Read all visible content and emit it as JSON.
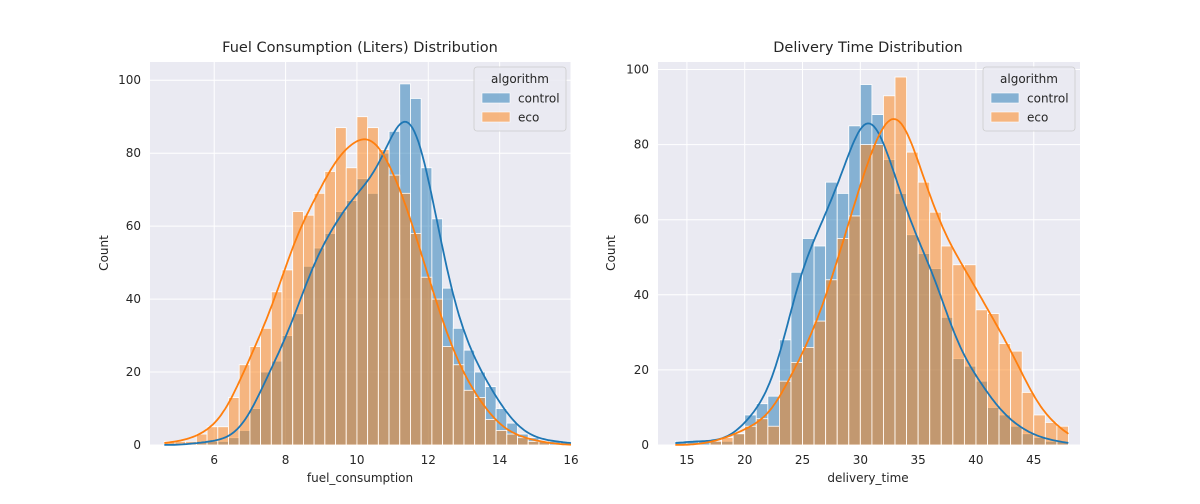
{
  "chart_data": [
    {
      "type": "histogram",
      "title": "Fuel Consumption (Liters) Distribution",
      "xlabel": "fuel_consumption",
      "ylabel": "Count",
      "xlim": [
        4.2,
        16.0
      ],
      "ylim": [
        0,
        105
      ],
      "xticks": [
        6,
        8,
        10,
        12,
        14,
        16
      ],
      "yticks": [
        0,
        20,
        40,
        60,
        80,
        100
      ],
      "grid": true,
      "kde": true,
      "bin_start": 4.6,
      "bin_width": 0.3,
      "legend": {
        "title": "algorithm",
        "location": "upper right"
      },
      "series": [
        {
          "name": "control",
          "color": "#1f77b4",
          "counts": [
            0,
            0,
            0,
            1,
            1,
            1,
            2,
            4,
            10,
            20,
            23,
            30,
            36,
            49,
            54,
            58,
            64,
            67,
            73,
            69,
            80,
            86,
            99,
            95,
            76,
            62,
            43,
            32,
            26,
            20,
            16,
            10,
            6,
            3,
            2,
            1,
            1,
            1
          ]
        },
        {
          "name": "eco",
          "color": "#ff7f0e",
          "counts": [
            1,
            1,
            1,
            3,
            5,
            5,
            13,
            22,
            27,
            32,
            42,
            48,
            64,
            63,
            69,
            75,
            87,
            76,
            90,
            87,
            81,
            74,
            69,
            58,
            46,
            40,
            27,
            22,
            15,
            13,
            7,
            4,
            3,
            2,
            1,
            1,
            0,
            0
          ]
        }
      ]
    },
    {
      "type": "histogram",
      "title": "Delivery Time Distribution",
      "xlabel": "delivery_time",
      "ylabel": "Count",
      "xlim": [
        12.5,
        49.0
      ],
      "ylim": [
        0,
        102
      ],
      "xticks": [
        15,
        20,
        25,
        30,
        35,
        40,
        45
      ],
      "yticks": [
        0,
        20,
        40,
        60,
        80,
        100
      ],
      "grid": true,
      "kde": true,
      "bin_start": 14.0,
      "bin_width": 1.0,
      "legend": {
        "title": "algorithm",
        "location": "upper right"
      },
      "series": [
        {
          "name": "control",
          "color": "#1f77b4",
          "counts": [
            1,
            1,
            1,
            1,
            1,
            3,
            8,
            11,
            13,
            28,
            46,
            55,
            53,
            70,
            67,
            85,
            96,
            88,
            76,
            67,
            56,
            51,
            47,
            34,
            23,
            21,
            17,
            10,
            8,
            5,
            3,
            2,
            1,
            1
          ]
        },
        {
          "name": "eco",
          "color": "#ff7f0e",
          "counts": [
            0,
            0,
            0,
            1,
            2,
            3,
            5,
            7,
            5,
            17,
            22,
            26,
            33,
            44,
            55,
            61,
            80,
            80,
            93,
            98,
            78,
            70,
            62,
            53,
            48,
            48,
            36,
            35,
            27,
            25,
            14,
            8,
            6,
            5
          ]
        }
      ]
    }
  ]
}
